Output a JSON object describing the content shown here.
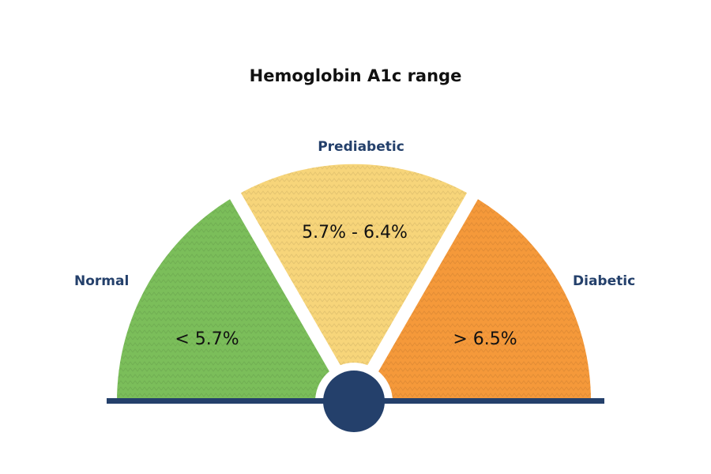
{
  "title": "Hemoglobin A1c range",
  "zones": [
    {
      "name": "Normal",
      "range": "< 5.7%",
      "color": "#7bbe5a"
    },
    {
      "name": "Prediabetic",
      "range": "5.7% - 6.4%",
      "color": "#f7d57a"
    },
    {
      "name": "Diabetic",
      "range": "> 6.5%",
      "color": "#f5993a"
    }
  ],
  "colors": {
    "baseline": "#24406b",
    "hub": "#24406b",
    "label": "#24406b"
  }
}
